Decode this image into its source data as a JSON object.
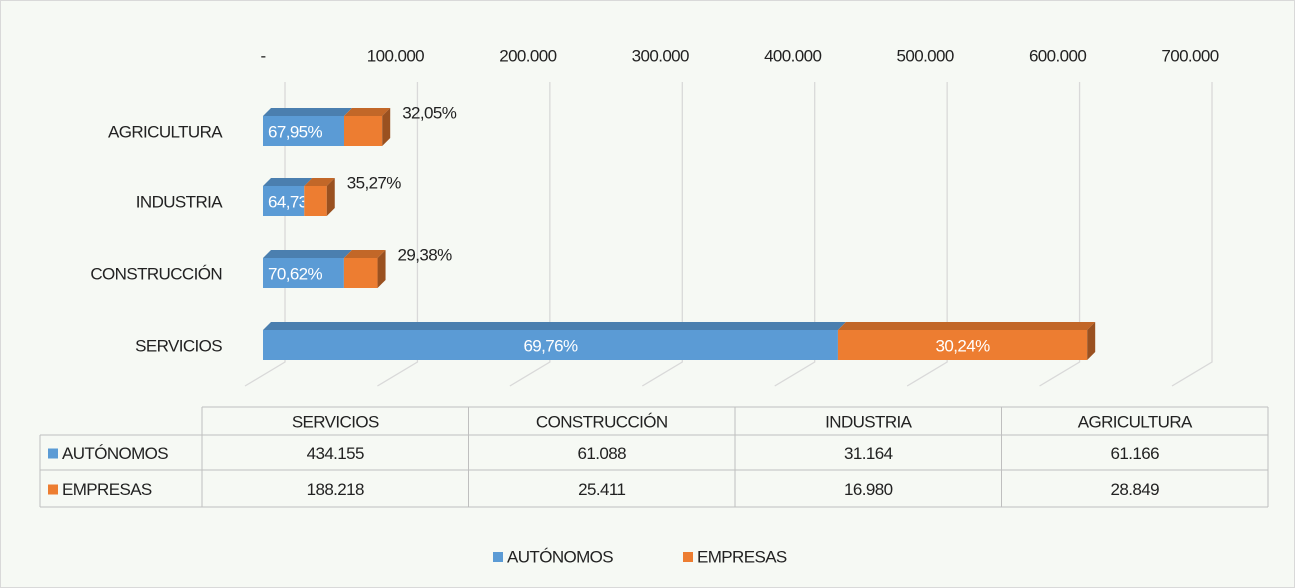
{
  "chart_data": {
    "type": "bar3d_stacked_horizontal",
    "categories": [
      "SERVICIOS",
      "CONSTRUCCIÓN",
      "INDUSTRIA",
      "AGRICULTURA"
    ],
    "series": [
      {
        "name": "AUTÓNOMOS",
        "color": "#5b9bd5",
        "values": [
          434155,
          61088,
          31164,
          61166
        ],
        "value_labels": [
          "434.155",
          "61.088",
          "31.164",
          "61.166"
        ],
        "percent_labels": [
          "69,76%",
          "70,62%",
          "64,73%",
          "67,95%"
        ]
      },
      {
        "name": "EMPRESAS",
        "color": "#ed7d31",
        "values": [
          188218,
          25411,
          16980,
          28849
        ],
        "value_labels": [
          "188.218",
          "25.411",
          "16.980",
          "28.849"
        ],
        "percent_labels": [
          "30,24%",
          "29,38%",
          "35,27%",
          "32,05%"
        ]
      }
    ],
    "xlim": [
      0,
      700000
    ],
    "xticks": [
      {
        "value": 0,
        "label": "-"
      },
      {
        "value": 100000,
        "label": "100.000"
      },
      {
        "value": 200000,
        "label": "200.000"
      },
      {
        "value": 300000,
        "label": "300.000"
      },
      {
        "value": 400000,
        "label": "400.000"
      },
      {
        "value": 500000,
        "label": "500.000"
      },
      {
        "value": 600000,
        "label": "600.000"
      },
      {
        "value": 700000,
        "label": "700.000"
      }
    ],
    "grid": true,
    "legend": "bottom"
  }
}
